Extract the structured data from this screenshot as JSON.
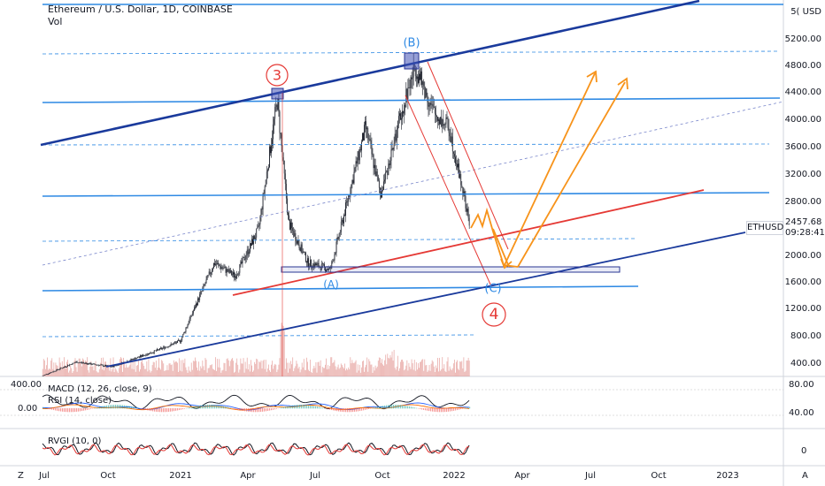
{
  "header": {
    "symbol": "Ethereum / U.S. Dollar, 1D, COINBASE",
    "vol_label": "Vol"
  },
  "price_axis": {
    "unit_label": "5( USD",
    "ticks": [
      "5200.00",
      "4800.00",
      "4400.00",
      "4000.00",
      "3600.00",
      "3200.00",
      "2800.00",
      "2000.00",
      "1600.00",
      "1200.00",
      "800.00",
      "400.00"
    ]
  },
  "time_axis": {
    "ticks": [
      "Jul",
      "Oct",
      "2021",
      "Apr",
      "Jul",
      "Oct",
      "2022",
      "Apr",
      "Jul",
      "Oct",
      "2023"
    ]
  },
  "last_price": {
    "symbol": "ETHUSD",
    "price": "2457.68",
    "countdown": "09:28:41"
  },
  "indicators": {
    "macd_label": "MACD (12, 26, close, 9)",
    "rsi_label": "RSI (14, close)",
    "rvgi_label": "RVGI (10, 0)",
    "left_ticks": [
      "400.00",
      "0.00"
    ],
    "right_ticks": [
      "80.00",
      "40.00",
      "0"
    ]
  },
  "wave_labels": {
    "w3": "3",
    "wB": "(B)",
    "wA": "(A)",
    "wC": "(C)",
    "w4": "4"
  },
  "corner_labels": {
    "left": "Z",
    "right": "A"
  },
  "colors": {
    "up_candle": "#131722",
    "channel": "#1a3a9c",
    "hline": "#2f8ae4",
    "red": "#e53935",
    "orange": "#f7931a",
    "volume": "#e08a86"
  },
  "chart_data": {
    "type": "candlestick",
    "title": "Ethereum / U.S. Dollar, 1D, COINBASE",
    "ylim": [
      300,
      5800
    ],
    "x_start": "2020-06",
    "x_end": "2023-02",
    "close_path": [
      {
        "date": "2020-07-01",
        "price": 230
      },
      {
        "date": "2020-08-15",
        "price": 430
      },
      {
        "date": "2020-10-01",
        "price": 360
      },
      {
        "date": "2020-12-01",
        "price": 600
      },
      {
        "date": "2021-01-01",
        "price": 740
      },
      {
        "date": "2021-02-15",
        "price": 1900
      },
      {
        "date": "2021-03-15",
        "price": 1700
      },
      {
        "date": "2021-04-15",
        "price": 2400
      },
      {
        "date": "2021-05-10",
        "price": 4300
      },
      {
        "date": "2021-05-25",
        "price": 2500
      },
      {
        "date": "2021-06-20",
        "price": 1900
      },
      {
        "date": "2021-07-20",
        "price": 1800
      },
      {
        "date": "2021-08-20",
        "price": 3200
      },
      {
        "date": "2021-09-05",
        "price": 3900
      },
      {
        "date": "2021-09-25",
        "price": 2900
      },
      {
        "date": "2021-10-25",
        "price": 4200
      },
      {
        "date": "2021-11-10",
        "price": 4800
      },
      {
        "date": "2021-12-05",
        "price": 4100
      },
      {
        "date": "2021-12-25",
        "price": 3900
      },
      {
        "date": "2022-01-10",
        "price": 3100
      },
      {
        "date": "2022-01-22",
        "price": 2457.68
      }
    ]
  }
}
